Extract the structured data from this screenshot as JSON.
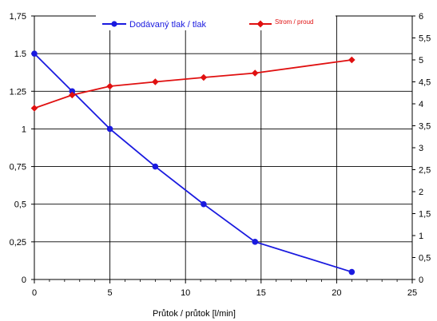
{
  "chart_data": {
    "type": "line",
    "title": "",
    "xlabel": "Průtok / průtok [l/min]",
    "ylabel_left": "",
    "ylabel_right": "",
    "xlim": [
      0,
      25
    ],
    "xticks": [
      0,
      5,
      10,
      15,
      20,
      25
    ],
    "xtick_labels": [
      "0",
      "5",
      "10",
      "15",
      "20",
      "25"
    ],
    "ylim_left": [
      0,
      1.75
    ],
    "yticks_left": [
      0,
      0.25,
      0.5,
      0.75,
      1,
      1.25,
      1.5,
      1.75
    ],
    "ytick_labels_left": [
      "0",
      "0,25",
      "0,5",
      "0,75",
      "1",
      "1.25",
      "1.5",
      "1,75"
    ],
    "ylim_right": [
      0,
      6
    ],
    "yticks_right": [
      0,
      0.5,
      1,
      1.5,
      2,
      2.5,
      3,
      3.5,
      4,
      4.5,
      5,
      5.5,
      6
    ],
    "ytick_labels_right": [
      "0",
      "0,5",
      "1",
      "1,5",
      "2",
      "2,5",
      "3",
      "3,5",
      "4",
      "4,5",
      "5",
      "5,5",
      "6"
    ],
    "grid": "horizontal",
    "legend_position": "top",
    "series": [
      {
        "name": "Dodávaný tlak / tlak",
        "axis": "left",
        "color": "#1a1adf",
        "marker": "circle",
        "x": [
          0,
          2.5,
          5,
          8,
          11.2,
          14.6,
          21
        ],
        "y": [
          1.5,
          1.25,
          1.0,
          0.75,
          0.5,
          0.25,
          0.05
        ]
      },
      {
        "name": "Strom / proud",
        "axis": "right",
        "color": "#e01010",
        "marker": "diamond",
        "x": [
          0,
          2.5,
          5,
          8,
          11.2,
          14.6,
          21
        ],
        "y": [
          3.9,
          4.2,
          4.4,
          4.5,
          4.6,
          4.7,
          5.0
        ]
      }
    ]
  }
}
